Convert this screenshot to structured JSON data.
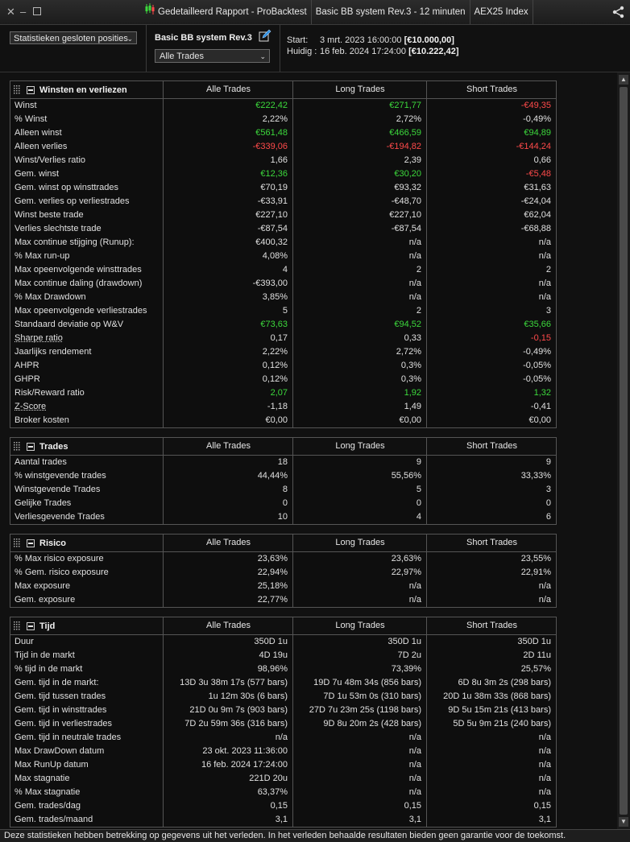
{
  "window": {
    "tab_report": "Gedetailleerd Rapport - ProBacktest",
    "tab_system": "Basic BB system Rev.3 - 12 minuten",
    "tab_instrument": "AEX25 Index"
  },
  "header": {
    "stats_select": "Statistieken gesloten posities",
    "system_name": "Basic BB system Rev.3",
    "trades_select": "Alle Trades",
    "start_label": "Start:",
    "start_date": "3 mrt. 2023 16:00:00",
    "start_capital": "[€10.000,00]",
    "current_label": "Huidig :",
    "current_date": "16 feb. 2024 17:24:00",
    "current_capital": "[€10.222,42]"
  },
  "columns": [
    "Alle Trades",
    "Long Trades",
    "Short Trades"
  ],
  "sections": [
    {
      "title": "Winsten en verliezen",
      "rows": [
        {
          "label": "Winst",
          "values": [
            "€222,42",
            "€271,77",
            "-€49,35"
          ],
          "colors": [
            "green",
            "green",
            "red"
          ]
        },
        {
          "label": "% Winst",
          "values": [
            "2,22%",
            "2,72%",
            "-0,49%"
          ]
        },
        {
          "label": "Alleen winst",
          "values": [
            "€561,48",
            "€466,59",
            "€94,89"
          ],
          "colors": [
            "green",
            "green",
            "green"
          ]
        },
        {
          "label": "Alleen verlies",
          "values": [
            "-€339,06",
            "-€194,82",
            "-€144,24"
          ],
          "colors": [
            "red",
            "red",
            "red"
          ]
        },
        {
          "label": "Winst/Verlies ratio",
          "values": [
            "1,66",
            "2,39",
            "0,66"
          ]
        },
        {
          "label": "Gem. winst",
          "values": [
            "€12,36",
            "€30,20",
            "-€5,48"
          ],
          "colors": [
            "green",
            "green",
            "red"
          ]
        },
        {
          "label": "Gem. winst op winsttrades",
          "values": [
            "€70,19",
            "€93,32",
            "€31,63"
          ]
        },
        {
          "label": "Gem. verlies op verliestrades",
          "values": [
            "-€33,91",
            "-€48,70",
            "-€24,04"
          ]
        },
        {
          "label": "Winst beste trade",
          "values": [
            "€227,10",
            "€227,10",
            "€62,04"
          ]
        },
        {
          "label": "Verlies slechtste trade",
          "values": [
            "-€87,54",
            "-€87,54",
            "-€68,88"
          ]
        },
        {
          "label": "Max continue stijging (Runup):",
          "values": [
            "€400,32",
            "n/a",
            "n/a"
          ]
        },
        {
          "label": "% Max run-up",
          "values": [
            "4,08%",
            "n/a",
            "n/a"
          ]
        },
        {
          "label": "Max opeenvolgende winsttrades",
          "values": [
            "4",
            "2",
            "2"
          ]
        },
        {
          "label": "Max continue daling (drawdown)",
          "values": [
            "-€393,00",
            "n/a",
            "n/a"
          ]
        },
        {
          "label": "% Max Drawdown",
          "values": [
            "3,85%",
            "n/a",
            "n/a"
          ]
        },
        {
          "label": "Max opeenvolgende verliestrades",
          "values": [
            "5",
            "2",
            "3"
          ]
        },
        {
          "label": "Standaard deviatie op W&V",
          "values": [
            "€73,63",
            "€94,52",
            "€35,66"
          ],
          "colors": [
            "green",
            "green",
            "green"
          ]
        },
        {
          "label": "Sharpe ratio",
          "values": [
            "0,17",
            "0,33",
            "-0,15"
          ],
          "colors": [
            "",
            "",
            "red"
          ],
          "link": true
        },
        {
          "label": "Jaarlijks rendement",
          "values": [
            "2,22%",
            "2,72%",
            "-0,49%"
          ]
        },
        {
          "label": "AHPR",
          "values": [
            "0,12%",
            "0,3%",
            "-0,05%"
          ]
        },
        {
          "label": "GHPR",
          "values": [
            "0,12%",
            "0,3%",
            "-0,05%"
          ]
        },
        {
          "label": "Risk/Reward ratio",
          "values": [
            "2,07",
            "1,92",
            "1,32"
          ],
          "colors": [
            "green",
            "green",
            "green"
          ]
        },
        {
          "label": "Z-Score",
          "values": [
            "-1,18",
            "1,49",
            "-0,41"
          ],
          "link": true
        },
        {
          "label": "Broker kosten",
          "values": [
            "€0,00",
            "€0,00",
            "€0,00"
          ]
        }
      ]
    },
    {
      "title": "Trades",
      "rows": [
        {
          "label": "Aantal trades",
          "values": [
            "18",
            "9",
            "9"
          ]
        },
        {
          "label": "% winstgevende trades",
          "values": [
            "44,44%",
            "55,56%",
            "33,33%"
          ]
        },
        {
          "label": "Winstgevende Trades",
          "values": [
            "8",
            "5",
            "3"
          ]
        },
        {
          "label": "Gelijke Trades",
          "values": [
            "0",
            "0",
            "0"
          ]
        },
        {
          "label": "Verliesgevende Trades",
          "values": [
            "10",
            "4",
            "6"
          ]
        }
      ]
    },
    {
      "title": "Risico",
      "rows": [
        {
          "label": "% Max risico exposure",
          "values": [
            "23,63%",
            "23,63%",
            "23,55%"
          ]
        },
        {
          "label": "% Gem. risico exposure",
          "values": [
            "22,94%",
            "22,97%",
            "22,91%"
          ]
        },
        {
          "label": "Max exposure",
          "values": [
            "25,18%",
            "n/a",
            "n/a"
          ]
        },
        {
          "label": "Gem. exposure",
          "values": [
            "22,77%",
            "n/a",
            "n/a"
          ]
        }
      ]
    },
    {
      "title": "Tijd",
      "rows": [
        {
          "label": "Duur",
          "values": [
            "350D 1u",
            "350D 1u",
            "350D 1u"
          ]
        },
        {
          "label": "Tijd in de markt",
          "values": [
            "4D 19u",
            "7D 2u",
            "2D 11u"
          ]
        },
        {
          "label": "% tijd in de markt",
          "values": [
            "98,96%",
            "73,39%",
            "25,57%"
          ]
        },
        {
          "label": "Gem. tijd in de markt:",
          "values": [
            "13D 3u 38m 17s (577 bars)",
            "19D 7u 48m 34s (856 bars)",
            "6D 8u 3m 2s (298 bars)"
          ]
        },
        {
          "label": "Gem. tijd tussen trades",
          "values": [
            "1u 12m 30s (6 bars)",
            "7D 1u 53m 0s (310 bars)",
            "20D 1u 38m 33s (868 bars)"
          ]
        },
        {
          "label": "Gem. tijd in winsttrades",
          "values": [
            "21D 0u 9m 7s (903 bars)",
            "27D 7u 23m 25s (1198 bars)",
            "9D 5u 15m 21s (413 bars)"
          ]
        },
        {
          "label": "Gem. tijd in verliestrades",
          "values": [
            "7D 2u 59m 36s (316 bars)",
            "9D 8u 20m 2s (428 bars)",
            "5D 5u 9m 21s (240 bars)"
          ]
        },
        {
          "label": "Gem. tijd in neutrale trades",
          "values": [
            "n/a",
            "n/a",
            "n/a"
          ]
        },
        {
          "label": "Max DrawDown datum",
          "values": [
            "23 okt. 2023 11:36:00",
            "n/a",
            "n/a"
          ]
        },
        {
          "label": "Max RunUp datum",
          "values": [
            "16 feb. 2024 17:24:00",
            "n/a",
            "n/a"
          ]
        },
        {
          "label": "Max stagnatie",
          "values": [
            "221D 20u",
            "n/a",
            "n/a"
          ]
        },
        {
          "label": "% Max stagnatie",
          "values": [
            "63,37%",
            "n/a",
            "n/a"
          ]
        },
        {
          "label": "Gem. trades/dag",
          "values": [
            "0,15",
            "0,15",
            "0,15"
          ]
        },
        {
          "label": "Gem. trades/maand",
          "values": [
            "3,1",
            "3,1",
            "3,1"
          ]
        }
      ]
    }
  ],
  "footer": "Deze statistieken hebben betrekking op gegevens uit het verleden. In het verleden behaalde resultaten bieden geen garantie voor de toekomst.",
  "colors": {
    "positive": "#3cd93c",
    "negative": "#ff4a4a",
    "background": "#0b0b0b"
  }
}
